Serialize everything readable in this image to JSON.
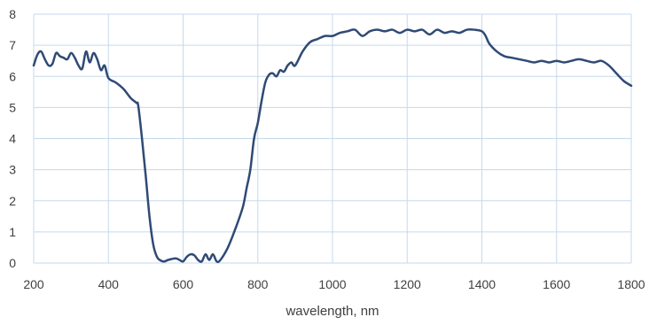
{
  "chart_data": {
    "type": "line",
    "xlabel": "wavelength, nm",
    "ylabel": "",
    "xlim": [
      200,
      1800
    ],
    "ylim": [
      0,
      8
    ],
    "xticks": [
      200,
      400,
      600,
      800,
      1000,
      1200,
      1400,
      1600,
      1800
    ],
    "yticks": [
      0,
      1,
      2,
      3,
      4,
      5,
      6,
      7,
      8
    ],
    "grid": true,
    "legend": "none",
    "series": [
      {
        "color": "#2f4a75",
        "x": [
          200,
          210,
          220,
          230,
          240,
          250,
          260,
          270,
          280,
          290,
          300,
          310,
          320,
          330,
          340,
          350,
          360,
          370,
          380,
          390,
          400,
          420,
          440,
          460,
          475,
          480,
          490,
          500,
          510,
          520,
          530,
          540,
          550,
          560,
          580,
          590,
          600,
          610,
          620,
          630,
          640,
          650,
          660,
          670,
          680,
          690,
          700,
          720,
          740,
          760,
          770,
          780,
          790,
          800,
          810,
          820,
          830,
          840,
          850,
          860,
          870,
          880,
          890,
          900,
          920,
          940,
          960,
          980,
          1000,
          1020,
          1040,
          1060,
          1080,
          1100,
          1120,
          1140,
          1160,
          1180,
          1200,
          1220,
          1240,
          1260,
          1280,
          1300,
          1320,
          1340,
          1360,
          1380,
          1400,
          1410,
          1420,
          1440,
          1460,
          1480,
          1500,
          1520,
          1540,
          1560,
          1580,
          1600,
          1620,
          1640,
          1660,
          1680,
          1700,
          1720,
          1740,
          1760,
          1780,
          1800
        ],
        "y": [
          6.35,
          6.7,
          6.8,
          6.55,
          6.35,
          6.4,
          6.75,
          6.65,
          6.6,
          6.55,
          6.75,
          6.6,
          6.35,
          6.25,
          6.8,
          6.45,
          6.75,
          6.55,
          6.2,
          6.35,
          5.95,
          5.8,
          5.6,
          5.3,
          5.15,
          5.05,
          4.0,
          2.8,
          1.5,
          0.6,
          0.2,
          0.08,
          0.05,
          0.1,
          0.15,
          0.1,
          0.05,
          0.2,
          0.28,
          0.25,
          0.1,
          0.05,
          0.28,
          0.1,
          0.28,
          0.05,
          0.1,
          0.5,
          1.1,
          1.8,
          2.4,
          3.0,
          4.0,
          4.5,
          5.2,
          5.8,
          6.05,
          6.1,
          6.0,
          6.2,
          6.15,
          6.35,
          6.45,
          6.35,
          6.8,
          7.1,
          7.2,
          7.3,
          7.3,
          7.4,
          7.45,
          7.5,
          7.3,
          7.45,
          7.5,
          7.45,
          7.5,
          7.4,
          7.5,
          7.45,
          7.5,
          7.35,
          7.5,
          7.4,
          7.45,
          7.4,
          7.5,
          7.5,
          7.45,
          7.3,
          7.05,
          6.8,
          6.65,
          6.6,
          6.55,
          6.5,
          6.45,
          6.5,
          6.45,
          6.5,
          6.45,
          6.5,
          6.55,
          6.5,
          6.45,
          6.5,
          6.35,
          6.1,
          5.85,
          5.7
        ]
      }
    ]
  }
}
